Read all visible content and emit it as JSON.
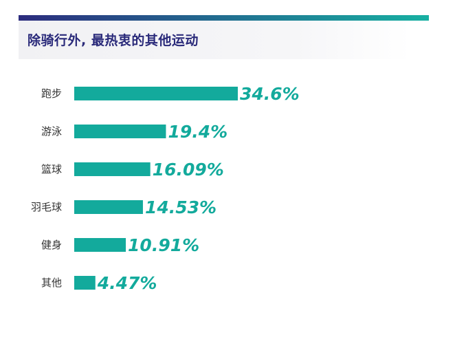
{
  "title": "除骑行外, 最热衷的其他运动",
  "colors": {
    "bar": "#13aa9c",
    "value_text": "#13aa9c",
    "title_text": "#2a2a7a",
    "top_bar_start": "#2c2c7e",
    "top_bar_end": "#17b0a2"
  },
  "chart_data": {
    "type": "bar",
    "orientation": "horizontal",
    "categories": [
      "跑步",
      "游泳",
      "篮球",
      "羽毛球",
      "健身",
      "其他"
    ],
    "values": [
      34.6,
      19.4,
      16.09,
      14.53,
      10.91,
      4.47
    ],
    "value_labels": [
      "34.6%",
      "19.4%",
      "16.09%",
      "14.53%",
      "10.91%",
      "4.47%"
    ],
    "unit": "%",
    "title": "除骑行外, 最热衷的其他运动",
    "xlabel": "",
    "ylabel": "",
    "grid": false,
    "legend": "none"
  }
}
